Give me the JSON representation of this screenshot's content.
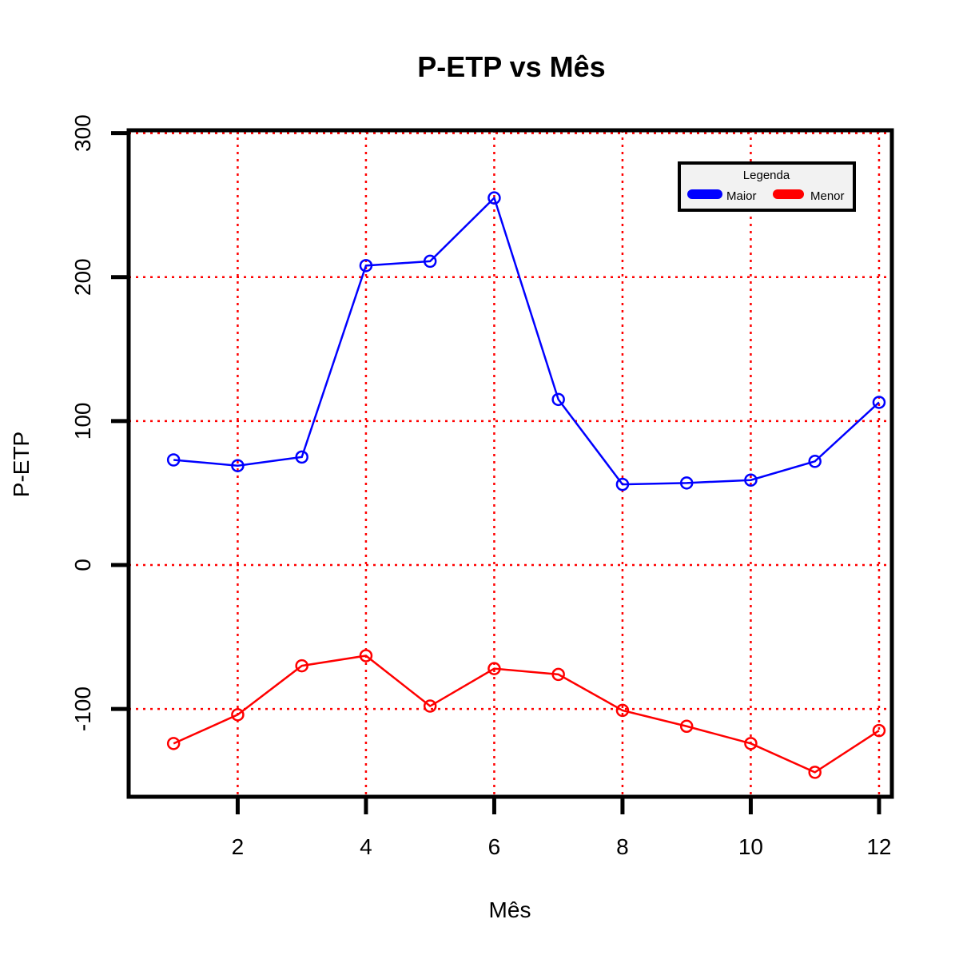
{
  "chart_data": {
    "type": "line",
    "title": "P-ETP vs Mês",
    "xlabel": "Mês",
    "ylabel": "P-ETP",
    "x": [
      1,
      2,
      3,
      4,
      5,
      6,
      7,
      8,
      9,
      10,
      11,
      12
    ],
    "xlim": [
      0.3,
      12.2
    ],
    "ylim": [
      -161,
      302
    ],
    "x_ticks": [
      2,
      4,
      6,
      8,
      10,
      12
    ],
    "y_ticks": [
      -100,
      0,
      100,
      200,
      300
    ],
    "x_tick_labels": [
      "2",
      "4",
      "6",
      "8",
      "10",
      "12"
    ],
    "y_tick_labels": [
      "-100",
      "0",
      "100",
      "200",
      "300"
    ],
    "grid": true,
    "grid_color": "#ff0000",
    "grid_x": [
      2,
      4,
      6,
      8,
      10,
      12
    ],
    "grid_y": [
      -100,
      0,
      100,
      200,
      300
    ],
    "legend": {
      "title": "Legenda",
      "position": "top-right"
    },
    "series": [
      {
        "name": "Maior",
        "color": "#0000ff",
        "values": [
          73,
          69,
          75,
          208,
          211,
          255,
          115,
          56,
          57,
          59,
          72,
          113
        ]
      },
      {
        "name": "Menor",
        "color": "#ff0000",
        "values": [
          -124,
          -104,
          -70,
          -63,
          -98,
          -72,
          -76,
          -101,
          -112,
          -124,
          -144,
          -115
        ]
      }
    ]
  }
}
